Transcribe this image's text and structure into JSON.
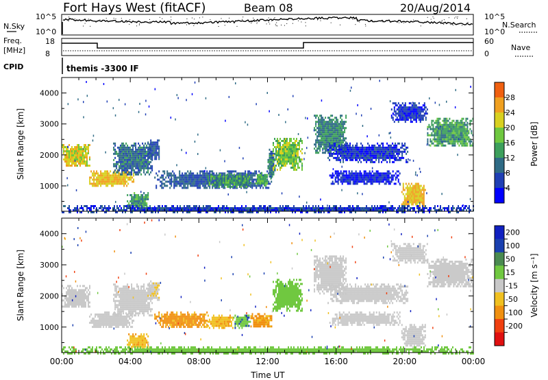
{
  "header": {
    "station": "Fort Hays West (fitACF)",
    "beam": "Beam 08",
    "date": "20/Aug/2014"
  },
  "top_panels": {
    "nsky_label": "N.Sky",
    "nsearch_label": "N.Search",
    "nsky_ticks": [
      "10^5",
      "10^0"
    ],
    "nsky_right_ticks": [
      "10^5",
      "10^0"
    ],
    "freq_label_1": "Freq.",
    "freq_label_2": "[MHz]",
    "freq_ticks": [
      "18",
      "8"
    ],
    "nave_label": "Nave",
    "nave_ticks": [
      "60",
      "0"
    ],
    "cpid_label": "CPID",
    "cpid_text": "themis -3300 IF"
  },
  "colors": {
    "power_scale": [
      "#0000ff",
      "#1f3fb4",
      "#2f6b86",
      "#3d9f5c",
      "#6fc840",
      "#d8d020",
      "#f0a020",
      "#f06010",
      "#e02020"
    ],
    "velocity_scale": [
      "#1020c0",
      "#1a40b0",
      "#4a8a50",
      "#70c840",
      "#c8c8c8",
      "#f0c020",
      "#f09010",
      "#f04010",
      "#e01010"
    ]
  },
  "chart_data": [
    {
      "type": "heatmap",
      "name": "power",
      "ylabel": "Slant Range [km]",
      "yticks": [
        "1000",
        "2000",
        "3000",
        "4000"
      ],
      "ylim": [
        180,
        4500
      ],
      "xlim": [
        0,
        24
      ],
      "colorbar_label": "Power [dB]",
      "colorbar_ticks": [
        "4",
        "8",
        "12",
        "16",
        "20",
        "24",
        "28"
      ],
      "colorbar_range": [
        0,
        32
      ],
      "patches": [
        {
          "t0": 0.0,
          "t1": 1.6,
          "r0": 1650,
          "r1": 2350,
          "v": 22
        },
        {
          "t0": 1.6,
          "t1": 4.2,
          "r0": 1000,
          "r1": 1500,
          "v": 24
        },
        {
          "t0": 3.0,
          "t1": 5.3,
          "r0": 1400,
          "r1": 2400,
          "v": 10
        },
        {
          "t0": 3.8,
          "t1": 5.0,
          "r0": 300,
          "r1": 800,
          "v": 14
        },
        {
          "t0": 5.0,
          "t1": 5.7,
          "r0": 1900,
          "r1": 2500,
          "v": 8
        },
        {
          "t0": 5.4,
          "t1": 12.2,
          "r0": 950,
          "r1": 1500,
          "v": 8
        },
        {
          "t0": 8.5,
          "t1": 11.0,
          "r0": 1000,
          "r1": 1400,
          "v": 14
        },
        {
          "t0": 11.3,
          "t1": 12.0,
          "r0": 1050,
          "r1": 1450,
          "v": 16
        },
        {
          "t0": 12.0,
          "t1": 12.4,
          "r0": 1200,
          "r1": 2200,
          "v": 10
        },
        {
          "t0": 12.3,
          "t1": 14.0,
          "r0": 1550,
          "r1": 2550,
          "v": 18
        },
        {
          "t0": 14.7,
          "t1": 16.6,
          "r0": 2100,
          "r1": 3300,
          "v": 12
        },
        {
          "t0": 15.5,
          "t1": 20.2,
          "r0": 1800,
          "r1": 2400,
          "v": 5
        },
        {
          "t0": 15.6,
          "t1": 19.7,
          "r0": 1100,
          "r1": 1500,
          "v": 4
        },
        {
          "t0": 19.2,
          "t1": 21.3,
          "r0": 3100,
          "r1": 3700,
          "v": 5
        },
        {
          "t0": 19.8,
          "t1": 21.2,
          "r0": 350,
          "r1": 1100,
          "v": 24
        },
        {
          "t0": 21.3,
          "t1": 24.0,
          "r0": 2300,
          "r1": 3200,
          "v": 14
        },
        {
          "t0": 0.0,
          "t1": 24.0,
          "r0": 180,
          "r1": 380,
          "v": 6
        }
      ]
    },
    {
      "type": "heatmap",
      "name": "velocity",
      "ylabel": "Slant Range [km]",
      "yticks": [
        "1000",
        "2000",
        "3000",
        "4000"
      ],
      "ylim": [
        180,
        4500
      ],
      "xlim": [
        0,
        24
      ],
      "xlabel": "Time UT",
      "xticks": [
        "00:00",
        "04:00",
        "08:00",
        "12:00",
        "16:00",
        "20:00",
        "00:00"
      ],
      "colorbar_label": "Velocity [m s⁻¹]",
      "colorbar_ticks": [
        "200",
        "100",
        "50",
        "15",
        "-15",
        "-50",
        "-100",
        "-200"
      ],
      "patches": [
        {
          "t0": 0.0,
          "t1": 1.6,
          "r0": 1650,
          "r1": 2350,
          "v": 0
        },
        {
          "t0": 1.6,
          "t1": 4.2,
          "r0": 1000,
          "r1": 1500,
          "v": 0
        },
        {
          "t0": 3.0,
          "t1": 5.3,
          "r0": 1400,
          "r1": 2400,
          "v": 0
        },
        {
          "t0": 3.8,
          "t1": 5.0,
          "r0": 300,
          "r1": 800,
          "v": -40
        },
        {
          "t0": 5.0,
          "t1": 5.7,
          "r0": 1900,
          "r1": 2500,
          "v": -10
        },
        {
          "t0": 5.4,
          "t1": 8.5,
          "r0": 1000,
          "r1": 1500,
          "v": -60
        },
        {
          "t0": 8.5,
          "t1": 10.0,
          "r0": 1000,
          "r1": 1400,
          "v": -40
        },
        {
          "t0": 10.0,
          "t1": 11.0,
          "r0": 1000,
          "r1": 1400,
          "v": 40
        },
        {
          "t0": 11.0,
          "t1": 12.2,
          "r0": 1000,
          "r1": 1450,
          "v": -60
        },
        {
          "t0": 12.3,
          "t1": 14.0,
          "r0": 1550,
          "r1": 2550,
          "v": 30
        },
        {
          "t0": 14.7,
          "t1": 16.6,
          "r0": 2100,
          "r1": 3300,
          "v": 0
        },
        {
          "t0": 15.5,
          "t1": 20.2,
          "r0": 1800,
          "r1": 2400,
          "v": 0
        },
        {
          "t0": 15.6,
          "t1": 19.7,
          "r0": 1100,
          "r1": 1500,
          "v": 0
        },
        {
          "t0": 19.2,
          "t1": 21.3,
          "r0": 3100,
          "r1": 3700,
          "v": 0
        },
        {
          "t0": 19.8,
          "t1": 21.2,
          "r0": 350,
          "r1": 1100,
          "v": 0
        },
        {
          "t0": 21.3,
          "t1": 24.0,
          "r0": 2300,
          "r1": 3200,
          "v": 0
        },
        {
          "t0": 0.0,
          "t1": 24.0,
          "r0": 180,
          "r1": 380,
          "v": 30
        }
      ]
    }
  ]
}
